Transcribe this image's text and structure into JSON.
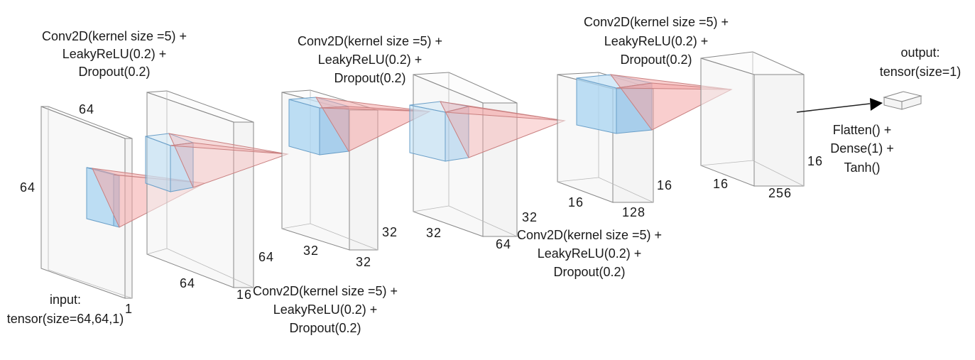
{
  "input": {
    "caption": [
      "input:",
      "tensor(size=64,64,1)"
    ],
    "height": "64",
    "width": "64",
    "depth": "1"
  },
  "layers": [
    {
      "name": "conv1",
      "op": [
        "Conv2D(kernel size =5) +",
        "LeakyReLU(0.2) +",
        "Dropout(0.2)"
      ],
      "out_height": "64",
      "out_width": "64",
      "out_depth": "16"
    },
    {
      "name": "conv2",
      "op": [
        "Conv2D(kernel size =5) +",
        "LeakyReLU(0.2) +",
        "Dropout(0.2)"
      ],
      "out_height": "32",
      "out_width": "32",
      "out_depth": "32"
    },
    {
      "name": "conv3",
      "op": [
        "Conv2D(kernel size =5) +",
        "LeakyReLU(0.2) +",
        "Dropout(0.2)"
      ],
      "out_height": "32",
      "out_width": "32",
      "out_depth": "64"
    },
    {
      "name": "conv4",
      "op": [
        "Conv2D(kernel size =5) +",
        "LeakyReLU(0.2) +",
        "Dropout(0.2)"
      ],
      "out_height": "16",
      "out_width": "16",
      "out_depth": "128"
    },
    {
      "name": "conv5",
      "out_height": "16",
      "out_width": "16",
      "out_depth": "256"
    }
  ],
  "head": {
    "op": [
      "Flatten() +",
      "Dense(1) +",
      "Tanh()"
    ]
  },
  "output": {
    "caption": [
      "output:",
      "tensor(size=1)"
    ]
  }
}
